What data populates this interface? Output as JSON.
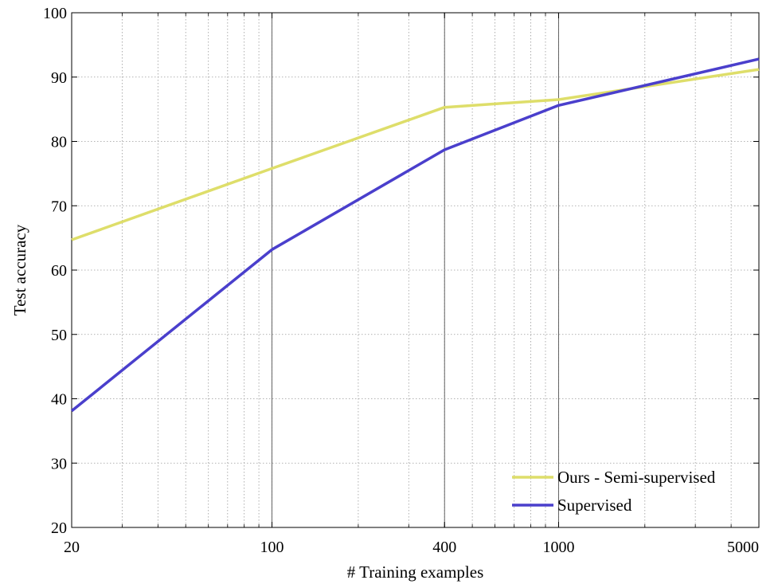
{
  "chart_data": {
    "type": "line",
    "xscale": "log",
    "xlim": [
      20,
      5000
    ],
    "ylim": [
      20,
      100
    ],
    "xticks": [
      20,
      100,
      400,
      1000,
      5000
    ],
    "xtick_labels": [
      "20",
      "100",
      "400",
      "1000",
      "5000"
    ],
    "yticks": [
      20,
      30,
      40,
      50,
      60,
      70,
      80,
      90,
      100
    ],
    "ytick_labels": [
      "20",
      "30",
      "40",
      "50",
      "60",
      "70",
      "80",
      "90",
      "100"
    ],
    "xlabel": "# Training examples",
    "ylabel": "Test accuracy",
    "grid": true,
    "legend_position": "bottom-right",
    "series": [
      {
        "name": "Ours - Semi-supervised",
        "color": "#dede6a",
        "x": [
          20,
          100,
          400,
          1000,
          5000
        ],
        "y": [
          64.7,
          75.8,
          85.3,
          86.5,
          91.2
        ]
      },
      {
        "name": "Supervised",
        "color": "#4a3fcc",
        "x": [
          20,
          100,
          400,
          1000,
          5000
        ],
        "y": [
          38.1,
          63.2,
          78.7,
          85.6,
          92.8
        ]
      }
    ]
  }
}
